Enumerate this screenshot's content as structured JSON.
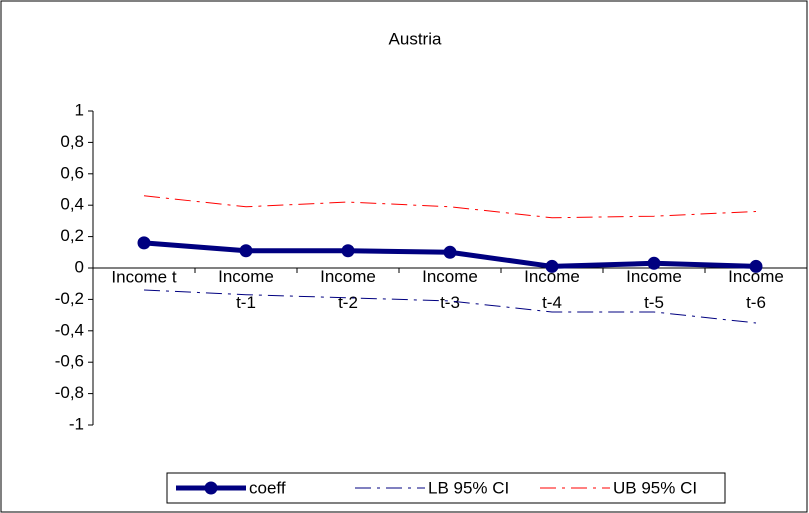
{
  "chart_data": {
    "type": "line",
    "title": "Austria",
    "categories": [
      "Income t",
      "Income t-1",
      "Income t-2",
      "Income t-3",
      "Income t-4",
      "Income t-5",
      "Income t-6"
    ],
    "series": [
      {
        "name": "coeff",
        "color": "#000080",
        "style": "solid",
        "values": [
          0.16,
          0.11,
          0.11,
          0.1,
          0.01,
          0.03,
          0.01
        ]
      },
      {
        "name": "LB 95% CI",
        "color": "#000080",
        "style": "dashdot",
        "values": [
          -0.14,
          -0.17,
          -0.19,
          -0.21,
          -0.28,
          -0.28,
          -0.35
        ]
      },
      {
        "name": "UB 95% CI",
        "color": "#ff0000",
        "style": "dashdot",
        "values": [
          0.46,
          0.39,
          0.42,
          0.39,
          0.32,
          0.33,
          0.36
        ]
      }
    ],
    "ylim": [
      -1,
      1
    ],
    "yticks": [
      1,
      {
        "value": 0.8,
        "label": "0,8"
      },
      {
        "value": 0.6,
        "label": "0,6"
      },
      {
        "value": 0.4,
        "label": "0,4"
      },
      {
        "value": 0.2,
        "label": "0,2"
      },
      0,
      {
        "value": -0.2,
        "label": "-0,2"
      },
      {
        "value": -0.4,
        "label": "-0,4"
      },
      {
        "value": -0.6,
        "label": "-0,6"
      },
      {
        "value": -0.8,
        "label": "-0,8"
      },
      -1
    ],
    "legend": "bottom"
  }
}
